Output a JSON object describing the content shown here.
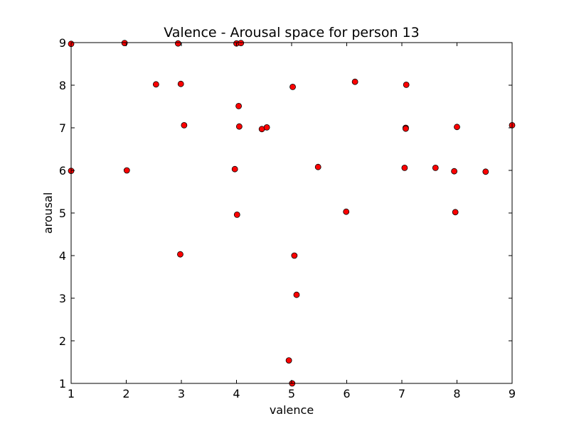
{
  "chart_data": {
    "type": "scatter",
    "title": "Valence - Arousal space for person 13",
    "xlabel": "valence",
    "ylabel": "arousal",
    "xlim": [
      1,
      9
    ],
    "ylim": [
      1,
      9
    ],
    "xticks": [
      "1",
      "2",
      "3",
      "4",
      "5",
      "6",
      "7",
      "8",
      "9"
    ],
    "yticks": [
      "1",
      "2",
      "3",
      "4",
      "5",
      "6",
      "7",
      "8",
      "9"
    ],
    "grid": false,
    "marker_color": "#ff0000",
    "marker_edge_color": "#000000",
    "series": [
      {
        "points": [
          [
            1.0,
            8.97
          ],
          [
            1.97,
            8.99
          ],
          [
            2.94,
            8.98
          ],
          [
            4.0,
            8.98
          ],
          [
            4.08,
            8.99
          ],
          [
            2.54,
            8.02
          ],
          [
            2.99,
            8.03
          ],
          [
            5.02,
            7.96
          ],
          [
            6.15,
            8.08
          ],
          [
            7.08,
            8.01
          ],
          [
            4.04,
            7.51
          ],
          [
            3.05,
            7.06
          ],
          [
            4.05,
            7.03
          ],
          [
            4.46,
            6.97
          ],
          [
            4.55,
            7.01
          ],
          [
            7.07,
            7.0
          ],
          [
            7.07,
            6.98
          ],
          [
            8.0,
            7.02
          ],
          [
            9.0,
            7.06
          ],
          [
            1.0,
            5.99
          ],
          [
            2.01,
            6.0
          ],
          [
            3.97,
            6.03
          ],
          [
            5.48,
            6.08
          ],
          [
            7.05,
            6.06
          ],
          [
            7.61,
            6.06
          ],
          [
            7.95,
            5.98
          ],
          [
            8.52,
            5.97
          ],
          [
            4.01,
            4.96
          ],
          [
            5.99,
            5.03
          ],
          [
            7.97,
            5.02
          ],
          [
            2.98,
            4.03
          ],
          [
            5.05,
            4.0
          ],
          [
            5.09,
            3.08
          ],
          [
            4.95,
            1.54
          ],
          [
            5.01,
            1.0
          ]
        ]
      }
    ]
  }
}
